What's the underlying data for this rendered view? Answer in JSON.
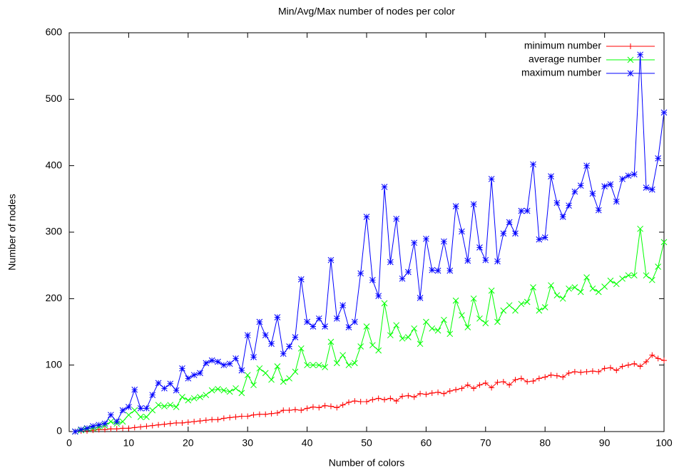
{
  "chart_data": {
    "type": "line",
    "title": "Min/Avg/Max number of nodes per color",
    "x_label": "Number of colors",
    "y_label": "Number of nodes",
    "x": [
      1,
      2,
      3,
      4,
      5,
      6,
      7,
      8,
      9,
      10,
      11,
      12,
      13,
      14,
      15,
      16,
      17,
      18,
      19,
      20,
      21,
      22,
      23,
      24,
      25,
      26,
      27,
      28,
      29,
      30,
      31,
      32,
      33,
      34,
      35,
      36,
      37,
      38,
      39,
      40,
      41,
      42,
      43,
      44,
      45,
      46,
      47,
      48,
      49,
      50,
      51,
      52,
      53,
      54,
      55,
      56,
      57,
      58,
      59,
      60,
      61,
      62,
      63,
      64,
      65,
      66,
      67,
      68,
      69,
      70,
      71,
      72,
      73,
      74,
      75,
      76,
      77,
      78,
      79,
      80,
      81,
      82,
      83,
      84,
      85,
      86,
      87,
      88,
      89,
      90,
      91,
      92,
      93,
      94,
      95,
      96,
      97,
      98,
      99,
      100
    ],
    "series": [
      {
        "name": "minimum number",
        "color": "#ff0000",
        "marker": "plus",
        "values": [
          0,
          1,
          1,
          2,
          3,
          3,
          4,
          4,
          5,
          5,
          6,
          7,
          8,
          9,
          10,
          11,
          12,
          13,
          13,
          14,
          15,
          16,
          17,
          18,
          18,
          20,
          21,
          22,
          23,
          23,
          25,
          26,
          26,
          27,
          28,
          32,
          32,
          33,
          32,
          35,
          37,
          36,
          39,
          38,
          36,
          40,
          44,
          46,
          45,
          45,
          48,
          50,
          48,
          50,
          46,
          53,
          54,
          52,
          57,
          56,
          58,
          59,
          57,
          61,
          63,
          65,
          70,
          65,
          70,
          73,
          66,
          74,
          75,
          70,
          78,
          80,
          75,
          76,
          80,
          82,
          85,
          84,
          82,
          88,
          90,
          89,
          90,
          91,
          90,
          95,
          96,
          92,
          98,
          100,
          102,
          98,
          105,
          115,
          110,
          107
        ]
      },
      {
        "name": "average number",
        "color": "#00ff00",
        "marker": "cross",
        "values": [
          0,
          2,
          4,
          5,
          7,
          9,
          15,
          12,
          15,
          25,
          32,
          22,
          22,
          32,
          40,
          38,
          40,
          37,
          52,
          47,
          50,
          52,
          55,
          62,
          64,
          62,
          60,
          65,
          58,
          85,
          70,
          95,
          88,
          78,
          98,
          75,
          80,
          90,
          125,
          100,
          100,
          100,
          97,
          135,
          103,
          115,
          100,
          103,
          128,
          158,
          130,
          122,
          193,
          145,
          160,
          140,
          142,
          155,
          132,
          165,
          155,
          152,
          168,
          147,
          197,
          175,
          157,
          200,
          170,
          163,
          212,
          165,
          182,
          190,
          182,
          192,
          195,
          217,
          182,
          187,
          220,
          205,
          200,
          215,
          217,
          210,
          232,
          215,
          210,
          218,
          227,
          222,
          230,
          235,
          235,
          305,
          235,
          228,
          248,
          285
        ]
      },
      {
        "name": "maximum number",
        "color": "#0000ff",
        "marker": "star",
        "values": [
          0,
          3,
          5,
          8,
          10,
          12,
          25,
          15,
          32,
          37,
          63,
          35,
          35,
          55,
          73,
          65,
          72,
          62,
          95,
          80,
          85,
          88,
          103,
          107,
          105,
          100,
          102,
          110,
          92,
          145,
          112,
          165,
          145,
          132,
          172,
          117,
          128,
          142,
          229,
          165,
          158,
          170,
          158,
          258,
          170,
          190,
          157,
          165,
          238,
          323,
          228,
          204,
          368,
          255,
          320,
          230,
          240,
          284,
          201,
          290,
          243,
          242,
          286,
          242,
          339,
          301,
          257,
          342,
          277,
          258,
          380,
          256,
          298,
          315,
          298,
          332,
          332,
          402,
          289,
          292,
          384,
          344,
          323,
          340,
          361,
          370,
          400,
          358,
          333,
          369,
          372,
          346,
          380,
          385,
          387,
          567,
          367,
          364,
          411,
          480
        ]
      }
    ],
    "xlim": [
      0,
      100
    ],
    "xticks": [
      0,
      10,
      20,
      30,
      40,
      50,
      60,
      70,
      80,
      90,
      100
    ],
    "ylim": [
      0,
      600
    ],
    "yticks": [
      0,
      100,
      200,
      300,
      400,
      500,
      600
    ],
    "legend": "top-right"
  }
}
